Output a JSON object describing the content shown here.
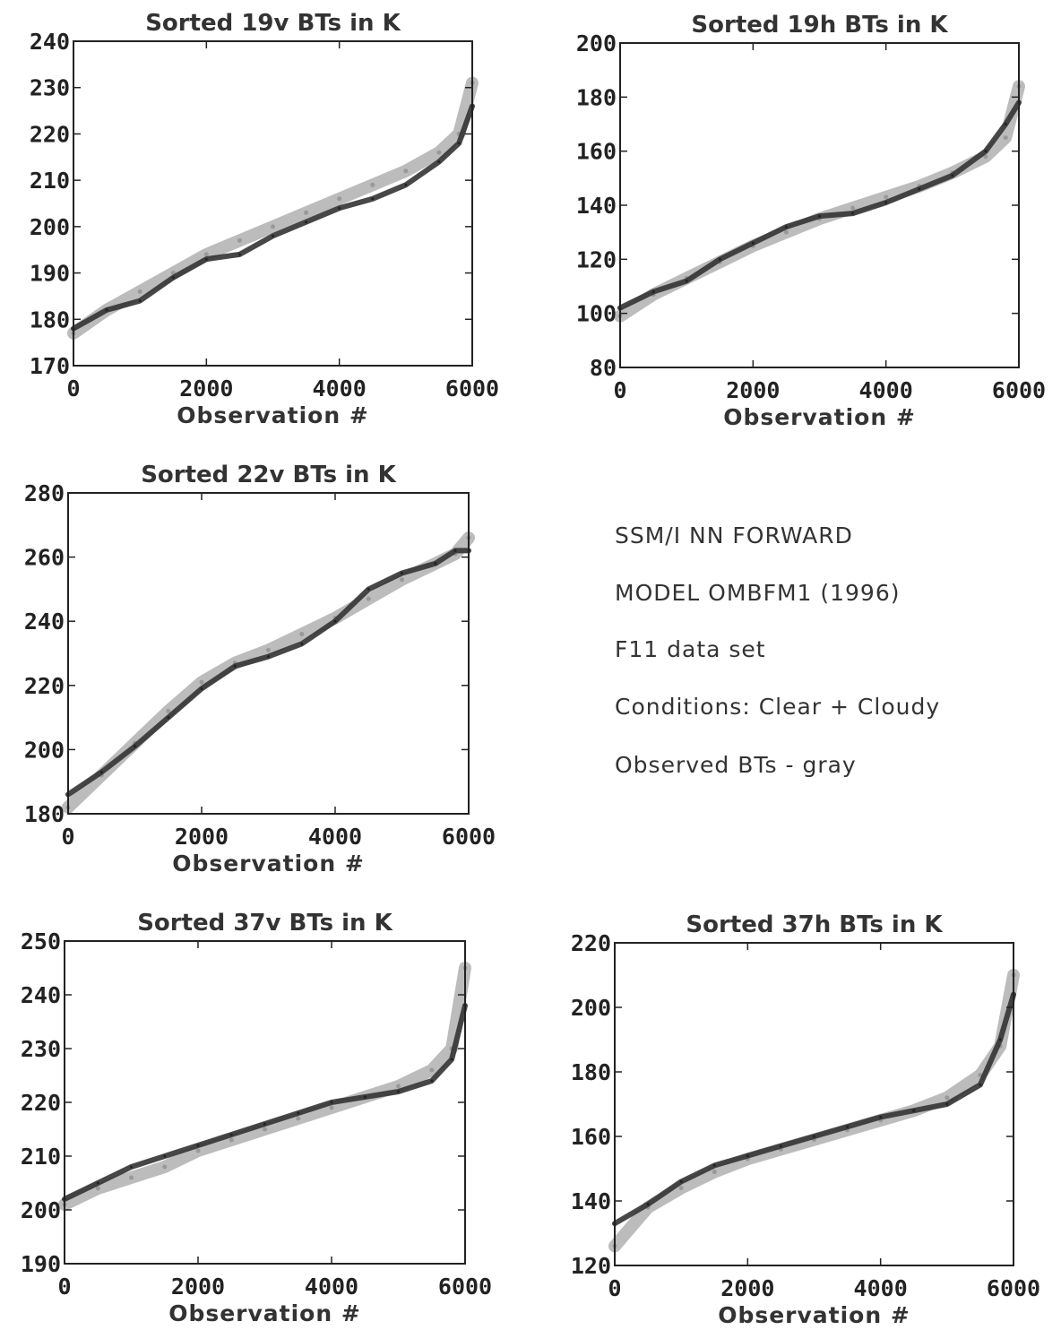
{
  "chart_data": [
    {
      "type": "line",
      "title": "Sorted 19v  BTs in K",
      "xlabel": "Observation #",
      "xlim": [
        0,
        6000
      ],
      "ylim": [
        170,
        240
      ],
      "xticks": [
        "0",
        "2000",
        "4000",
        "6000"
      ],
      "yticks": [
        "170",
        "180",
        "190",
        "200",
        "210",
        "220",
        "230",
        "240"
      ],
      "x": [
        0,
        500,
        1000,
        1500,
        2000,
        2500,
        3000,
        3500,
        4000,
        4500,
        5000,
        5500,
        5800,
        6000
      ],
      "series": [
        {
          "values": [
            177,
            182,
            186,
            190,
            194,
            197,
            200,
            203,
            206,
            209,
            212,
            216,
            220,
            231
          ]
        },
        {
          "values": [
            178,
            182,
            184,
            189,
            193,
            194,
            198,
            201,
            204,
            206,
            209,
            214,
            218,
            226
          ]
        }
      ]
    },
    {
      "type": "line",
      "title": "Sorted 19h  BTs in K",
      "xlabel": "Observation #",
      "xlim": [
        0,
        6000
      ],
      "ylim": [
        80,
        200
      ],
      "xticks": [
        "0",
        "2000",
        "4000",
        "6000"
      ],
      "yticks": [
        "80",
        "100",
        "120",
        "140",
        "160",
        "180",
        "200"
      ],
      "x": [
        0,
        500,
        1000,
        1500,
        2000,
        2500,
        3000,
        3500,
        4000,
        4500,
        5000,
        5500,
        5800,
        6000
      ],
      "series": [
        {
          "values": [
            99,
            107,
            113,
            119,
            125,
            130,
            135,
            139,
            143,
            147,
            152,
            158,
            165,
            184
          ]
        },
        {
          "values": [
            102,
            108,
            112,
            120,
            126,
            132,
            136,
            137,
            141,
            146,
            151,
            160,
            170,
            178
          ]
        }
      ]
    },
    {
      "type": "line",
      "title": "Sorted  22v  BTs in K",
      "xlabel": "Observation #",
      "xlim": [
        0,
        6000
      ],
      "ylim": [
        180,
        280
      ],
      "xticks": [
        "0",
        "2000",
        "4000",
        "6000"
      ],
      "yticks": [
        "180",
        "200",
        "220",
        "240",
        "260",
        "280"
      ],
      "x": [
        0,
        500,
        1000,
        1500,
        2000,
        2500,
        3000,
        3500,
        4000,
        4500,
        5000,
        5500,
        5800,
        6000
      ],
      "series": [
        {
          "values": [
            182,
            192,
            202,
            212,
            221,
            227,
            231,
            236,
            241,
            247,
            253,
            258,
            261,
            266
          ]
        },
        {
          "values": [
            186,
            193,
            201,
            210,
            219,
            226,
            229,
            233,
            240,
            250,
            255,
            258,
            262,
            262
          ]
        }
      ]
    },
    {
      "type": "line",
      "title": "Sorted 37v  BTs in K",
      "xlabel": "Observation #",
      "xlim": [
        0,
        6000
      ],
      "ylim": [
        190,
        250
      ],
      "xticks": [
        "0",
        "2000",
        "4000",
        "6000"
      ],
      "yticks": [
        "190",
        "200",
        "210",
        "220",
        "230",
        "240",
        "250"
      ],
      "x": [
        0,
        500,
        1000,
        1500,
        2000,
        2500,
        3000,
        3500,
        4000,
        4500,
        5000,
        5500,
        5800,
        6000
      ],
      "series": [
        {
          "values": [
            201,
            204,
            206,
            208,
            211,
            213,
            215,
            217,
            219,
            221,
            223,
            226,
            230,
            245
          ]
        },
        {
          "values": [
            202,
            205,
            208,
            210,
            212,
            214,
            216,
            218,
            220,
            221,
            222,
            224,
            228,
            238
          ]
        }
      ]
    },
    {
      "type": "line",
      "title": "Sorted 37h  BTs in K",
      "xlabel": "Observation #",
      "xlim": [
        0,
        6000
      ],
      "ylim": [
        120,
        220
      ],
      "xticks": [
        "0",
        "2000",
        "4000",
        "6000"
      ],
      "yticks": [
        "120",
        "140",
        "160",
        "180",
        "200",
        "220"
      ],
      "x": [
        0,
        500,
        1000,
        1500,
        2000,
        2500,
        3000,
        3500,
        4000,
        4500,
        5000,
        5500,
        5800,
        6000
      ],
      "series": [
        {
          "values": [
            126,
            138,
            144,
            149,
            153,
            156,
            159,
            162,
            165,
            168,
            172,
            179,
            188,
            210
          ]
        },
        {
          "values": [
            133,
            139,
            146,
            151,
            154,
            157,
            160,
            163,
            166,
            168,
            170,
            176,
            190,
            204
          ]
        }
      ]
    }
  ],
  "notes": [
    "SSM/I NN FORWARD",
    "MODEL OMBFM1 (1996)",
    "F11 data set",
    "Conditions: Clear + Cloudy",
    "Observed BTs - gray"
  ],
  "colors": {
    "observed": "#b0b0b0",
    "model": "#333333",
    "frame": "#222222"
  }
}
